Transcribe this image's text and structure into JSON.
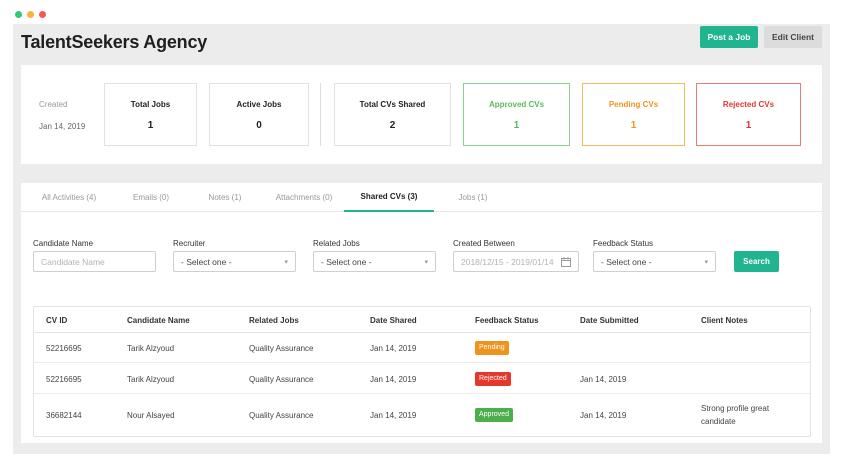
{
  "window": {
    "dot_colors": [
      "#2ecc71",
      "#f5b43b",
      "#f45a55"
    ]
  },
  "header": {
    "title": "TalentSeekers Agency",
    "post_job_label": "Post a Job",
    "edit_client_label": "Edit Client"
  },
  "stats": {
    "created_label": "Created",
    "created_value": "Jan 14, 2019",
    "total_jobs": {
      "label": "Total Jobs",
      "value": "1"
    },
    "active_jobs": {
      "label": "Active Jobs",
      "value": "0"
    },
    "total_cvs": {
      "label": "Total CVs Shared",
      "value": "2"
    },
    "approved": {
      "label": "Approved CVs",
      "value": "1",
      "color": "#5cb85c",
      "border": "#8fd18f"
    },
    "pending": {
      "label": "Pending CVs",
      "value": "1",
      "color": "#f0931e",
      "border": "#f6b862"
    },
    "rejected": {
      "label": "Rejected CVs",
      "value": "1",
      "color": "#e5382c",
      "border": "#ec7b73"
    }
  },
  "tabs": [
    {
      "label": "All Activities (4)"
    },
    {
      "label": "Emails (0)"
    },
    {
      "label": "Notes (1)"
    },
    {
      "label": "Attachments (0)"
    },
    {
      "label": "Shared CVs (3)"
    },
    {
      "label": "Jobs (1)"
    }
  ],
  "active_tab_index": 4,
  "filters": {
    "candidate_name": {
      "label": "Candidate Name",
      "placeholder": "Candidate Name"
    },
    "recruiter": {
      "label": "Recruiter",
      "value": "- Select one -"
    },
    "related_jobs": {
      "label": "Related Jobs",
      "value": "- Select one -"
    },
    "created_between": {
      "label": "Created Between",
      "value": "2018/12/15 - 2019/01/14"
    },
    "feedback_status": {
      "label": "Feedback Status",
      "value": "- Select one -"
    },
    "search_label": "Search"
  },
  "table": {
    "columns": [
      "CV ID",
      "Candidate Name",
      "Related Jobs",
      "Date Shared",
      "Feedback Status",
      "Date Submitted",
      "Client Notes"
    ],
    "rows": [
      {
        "cv_id": "52216695",
        "candidate": "Tarik Alzyoud",
        "job": "Quality Assurance",
        "date_shared": "Jan 14, 2019",
        "status": "Pending",
        "status_color": "#f0931e",
        "date_submitted": "",
        "notes": ""
      },
      {
        "cv_id": "52216695",
        "candidate": "Tarik Alzyoud",
        "job": "Quality Assurance",
        "date_shared": "Jan 14, 2019",
        "status": "Rejected",
        "status_color": "#e5382c",
        "date_submitted": "Jan 14, 2019",
        "notes": ""
      },
      {
        "cv_id": "36682144",
        "candidate": "Nour Alsayed",
        "job": "Quality Assurance",
        "date_shared": "Jan 14, 2019",
        "status": "Approved",
        "status_color": "#4cae4c",
        "date_submitted": "Jan 14, 2019",
        "notes": "Strong profile great candidate"
      }
    ]
  },
  "colors": {
    "accent": "#20b58e"
  }
}
